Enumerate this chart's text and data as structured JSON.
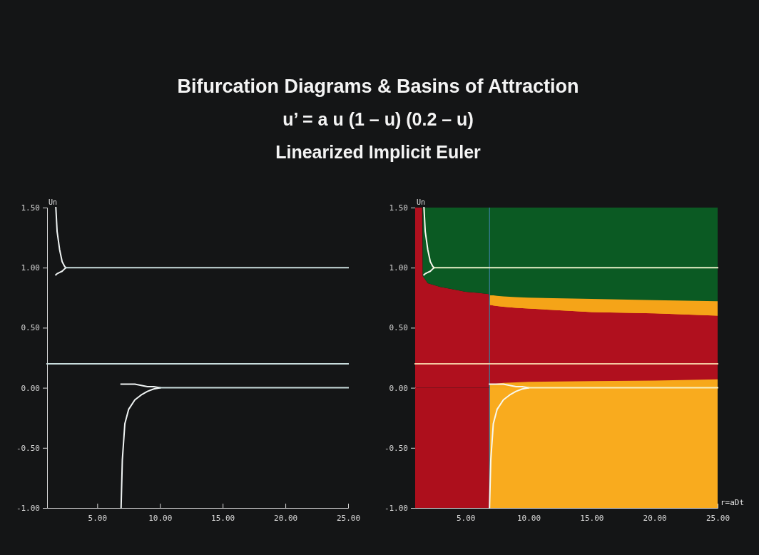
{
  "chart_data": [
    {
      "type": "line",
      "title": "Bifurcation Diagrams  &  Basins of Attraction",
      "subtitle": "u’ = a u (1 – u) (0.2 – u)",
      "annotations": [
        "Linearized Implicit Euler"
      ],
      "ylabel": "Un",
      "xlim": [
        1,
        25
      ],
      "ylim": [
        -1,
        1.5
      ],
      "xticks": [
        {
          "value": 5,
          "label": "5.00"
        },
        {
          "value": 10,
          "label": "10.00"
        },
        {
          "value": 15,
          "label": "15.00"
        },
        {
          "value": 20,
          "label": "20.00"
        },
        {
          "value": 25,
          "label": "25.00"
        }
      ],
      "yticks": [
        {
          "value": -1,
          "label": "-1.00"
        },
        {
          "value": -0.5,
          "label": "-0.50"
        },
        {
          "value": 0,
          "label": "0.00"
        },
        {
          "value": 0.5,
          "label": "0.50"
        },
        {
          "value": 1,
          "label": "1.00"
        },
        {
          "value": 1.5,
          "label": "1.50"
        }
      ],
      "series": [
        {
          "color": "#f0f4f4",
          "x": [
            1.7,
            1.8,
            2.0,
            2.2,
            2.4,
            2.5
          ],
          "values": [
            1.5,
            1.3,
            1.15,
            1.05,
            1.01,
            1.0
          ]
        },
        {
          "color": "#f0f4f4",
          "x": [
            1.7,
            1.8,
            2.0,
            2.2,
            2.4,
            2.5
          ],
          "values": [
            0.94,
            0.95,
            0.96,
            0.97,
            0.99,
            1.0
          ]
        },
        {
          "color": "#f0f4f4",
          "x": [
            6.9,
            7.0,
            7.2,
            7.5,
            8,
            8.5,
            9,
            9.5,
            10
          ],
          "values": [
            0.03,
            0.03,
            0.03,
            0.03,
            0.03,
            0.02,
            0.01,
            0.01,
            0
          ]
        },
        {
          "color": "#f0f4f4",
          "x": [
            6.9,
            7.0,
            7.2,
            7.5,
            8,
            8.5,
            9,
            9.5,
            10
          ],
          "values": [
            -1.0,
            -0.6,
            -0.3,
            -0.18,
            -0.1,
            -0.06,
            -0.03,
            -0.01,
            0
          ]
        },
        {
          "color": "#c8dcdc",
          "x": [
            2.5,
            25
          ],
          "values": [
            1,
            1
          ]
        },
        {
          "color": "#c8dcdc",
          "x": [
            1,
            25
          ],
          "values": [
            0.2,
            0.2
          ]
        },
        {
          "color": "#c8dcdc",
          "x": [
            10,
            25
          ],
          "values": [
            0,
            0
          ]
        }
      ]
    },
    {
      "type": "area",
      "stacked": true,
      "ylabel": "Un",
      "xlabel": "r=aDt",
      "xlim": [
        1,
        25
      ],
      "ylim": [
        -1,
        1.5
      ],
      "xticks": [
        {
          "value": 5,
          "label": "5.00"
        },
        {
          "value": 10,
          "label": "10.00"
        },
        {
          "value": 15,
          "label": "15.00"
        },
        {
          "value": 20,
          "label": "20.00"
        },
        {
          "value": 25,
          "label": "25.00"
        }
      ],
      "yticks": [
        {
          "value": -1,
          "label": "-1.00"
        },
        {
          "value": -0.5,
          "label": "-0.50"
        },
        {
          "value": 0,
          "label": "0.00"
        },
        {
          "value": 0.5,
          "label": "0.50"
        },
        {
          "value": 1,
          "label": "1.00"
        },
        {
          "value": 1.5,
          "label": "1.50"
        }
      ],
      "ref_lines": [
        {
          "axis": "x",
          "value": 6.9,
          "color": "#3a7f9a"
        }
      ],
      "bands": [
        {
          "axis": "y",
          "from": -1,
          "to": 0,
          "color": "#ad0f1c"
        },
        {
          "axis": "x",
          "from": 6.9,
          "to": 25,
          "color": "#f9ab1e"
        }
      ],
      "x": [
        1,
        1.55,
        1.6,
        2,
        3,
        4,
        5,
        6,
        6.85,
        6.9,
        7,
        7.2,
        7.5,
        8,
        9,
        10,
        15,
        20,
        25
      ],
      "series": [
        {
          "color": "#f7a81a",
          "values": [
            null,
            null,
            null,
            null,
            null,
            null,
            null,
            null,
            null,
            0.03,
            0.03,
            0.03,
            0.035,
            0.04,
            0.045,
            0.05,
            0.055,
            0.06,
            0.07
          ]
        },
        {
          "color": "#b0101e",
          "values": [
            1.5,
            1.5,
            0.93,
            0.87,
            0.84,
            0.82,
            0.8,
            0.79,
            0.78,
            0.66,
            0.66,
            0.655,
            0.645,
            0.635,
            0.62,
            0.61,
            0.575,
            0.56,
            0.53
          ]
        },
        {
          "color": "#f5a418",
          "values": [
            null,
            null,
            null,
            null,
            null,
            null,
            null,
            null,
            null,
            0.08,
            0.08,
            0.085,
            0.085,
            0.085,
            0.09,
            0.09,
            0.11,
            0.11,
            0.12
          ]
        },
        {
          "color": "#0b5a23",
          "values": [
            null,
            null,
            0.57,
            0.63,
            0.66,
            0.68,
            0.7,
            0.71,
            0.72,
            0.73,
            0.73,
            0.73,
            0.735,
            0.74,
            0.745,
            0.75,
            0.76,
            0.77,
            0.78
          ]
        },
        {
          "type": "line",
          "color": "#f8f8ee",
          "x": [
            1.7,
            1.8,
            2.0,
            2.2,
            2.4,
            2.5
          ],
          "values": [
            1.5,
            1.3,
            1.15,
            1.05,
            1.01,
            1.0
          ]
        },
        {
          "type": "line",
          "color": "#f8f8ee",
          "x": [
            1.7,
            1.8,
            2.0,
            2.2,
            2.4,
            2.5
          ],
          "values": [
            0.94,
            0.95,
            0.96,
            0.97,
            0.99,
            1.0
          ]
        },
        {
          "type": "line",
          "color": "#f8f8ee",
          "x": [
            6.9,
            7.0,
            7.2,
            7.5,
            8,
            8.5,
            9,
            9.5,
            10
          ],
          "values": [
            0.03,
            0.03,
            0.03,
            0.03,
            0.03,
            0.02,
            0.01,
            0.01,
            0
          ]
        },
        {
          "type": "line",
          "color": "#f8f8ee",
          "x": [
            6.9,
            7.0,
            7.2,
            7.5,
            8,
            8.5,
            9,
            9.5,
            10
          ],
          "values": [
            -1.0,
            -0.6,
            -0.3,
            -0.18,
            -0.1,
            -0.06,
            -0.03,
            -0.01,
            0
          ]
        },
        {
          "type": "line",
          "color": "#e8f0c8",
          "x": [
            2.5,
            25
          ],
          "values": [
            1,
            1
          ]
        },
        {
          "type": "line",
          "color": "#f4c8a0",
          "x": [
            1,
            25
          ],
          "values": [
            0.2,
            0.2
          ]
        },
        {
          "type": "line",
          "color": "#f8f0c0",
          "x": [
            10,
            25
          ],
          "values": [
            0,
            0
          ]
        }
      ]
    }
  ]
}
